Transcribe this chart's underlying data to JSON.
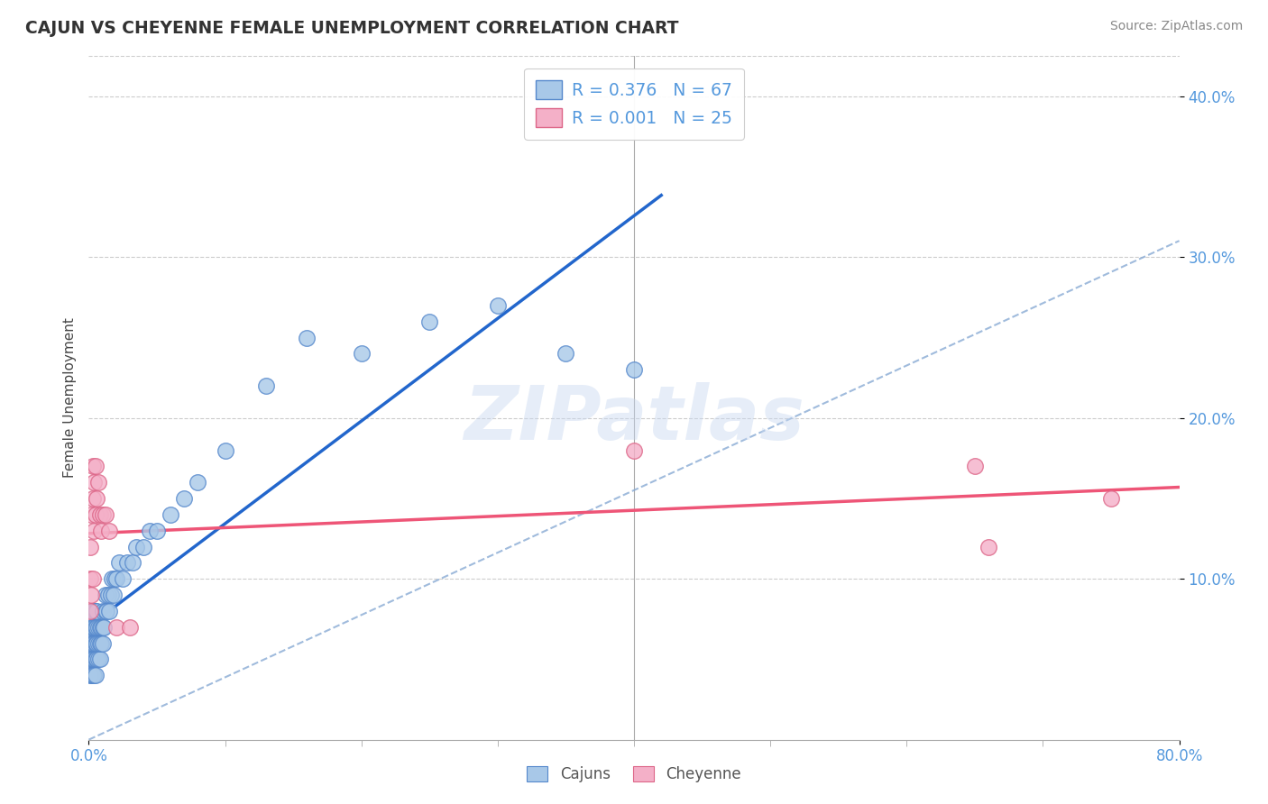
{
  "title": "CAJUN VS CHEYENNE FEMALE UNEMPLOYMENT CORRELATION CHART",
  "source_text": "Source: ZipAtlas.com",
  "ylabel": "Female Unemployment",
  "xmin": 0.0,
  "xmax": 0.8,
  "ymin": 0.0,
  "ymax": 0.425,
  "ytick_positions": [
    0.1,
    0.2,
    0.3,
    0.4
  ],
  "ytick_labels": [
    "10.0%",
    "20.0%",
    "30.0%",
    "40.0%"
  ],
  "cajun_color": "#a8c8e8",
  "cajun_edge_color": "#5588cc",
  "cheyenne_color": "#f4b0c8",
  "cheyenne_edge_color": "#dd6688",
  "cajun_R": 0.376,
  "cajun_N": 67,
  "cheyenne_R": 0.001,
  "cheyenne_N": 25,
  "watermark": "ZIPatlas",
  "watermark_color": "#c8d8f0",
  "legend_label_cajun": "Cajuns",
  "legend_label_cheyenne": "Cheyenne",
  "cajun_line_color": "#2266cc",
  "cheyenne_line_color": "#ee5577",
  "ref_line_color": "#88aad4",
  "grid_color": "#cccccc",
  "tick_color": "#5599dd",
  "cajun_x": [
    0.001,
    0.001,
    0.001,
    0.002,
    0.002,
    0.002,
    0.002,
    0.003,
    0.003,
    0.003,
    0.003,
    0.003,
    0.004,
    0.004,
    0.004,
    0.004,
    0.004,
    0.005,
    0.005,
    0.005,
    0.005,
    0.005,
    0.006,
    0.006,
    0.006,
    0.006,
    0.007,
    0.007,
    0.007,
    0.008,
    0.008,
    0.008,
    0.009,
    0.009,
    0.01,
    0.01,
    0.01,
    0.011,
    0.012,
    0.012,
    0.013,
    0.014,
    0.015,
    0.016,
    0.017,
    0.018,
    0.019,
    0.02,
    0.022,
    0.025,
    0.028,
    0.032,
    0.035,
    0.04,
    0.045,
    0.05,
    0.06,
    0.07,
    0.08,
    0.1,
    0.13,
    0.16,
    0.2,
    0.25,
    0.3,
    0.35,
    0.4
  ],
  "cajun_y": [
    0.04,
    0.05,
    0.06,
    0.04,
    0.05,
    0.06,
    0.07,
    0.04,
    0.05,
    0.06,
    0.07,
    0.08,
    0.04,
    0.05,
    0.06,
    0.07,
    0.08,
    0.04,
    0.05,
    0.06,
    0.07,
    0.08,
    0.05,
    0.06,
    0.07,
    0.08,
    0.05,
    0.06,
    0.07,
    0.05,
    0.06,
    0.07,
    0.06,
    0.07,
    0.06,
    0.07,
    0.08,
    0.07,
    0.08,
    0.09,
    0.08,
    0.09,
    0.08,
    0.09,
    0.1,
    0.09,
    0.1,
    0.1,
    0.11,
    0.1,
    0.11,
    0.11,
    0.12,
    0.12,
    0.13,
    0.13,
    0.14,
    0.15,
    0.16,
    0.18,
    0.22,
    0.25,
    0.24,
    0.26,
    0.27,
    0.24,
    0.23
  ],
  "cheyenne_x": [
    0.001,
    0.001,
    0.001,
    0.002,
    0.002,
    0.003,
    0.003,
    0.003,
    0.004,
    0.004,
    0.005,
    0.005,
    0.006,
    0.007,
    0.008,
    0.009,
    0.01,
    0.012,
    0.015,
    0.02,
    0.03,
    0.4,
    0.65,
    0.66,
    0.75
  ],
  "cheyenne_y": [
    0.08,
    0.1,
    0.12,
    0.09,
    0.14,
    0.1,
    0.15,
    0.17,
    0.13,
    0.16,
    0.14,
    0.17,
    0.15,
    0.16,
    0.14,
    0.13,
    0.14,
    0.14,
    0.13,
    0.07,
    0.07,
    0.18,
    0.17,
    0.12,
    0.15
  ]
}
